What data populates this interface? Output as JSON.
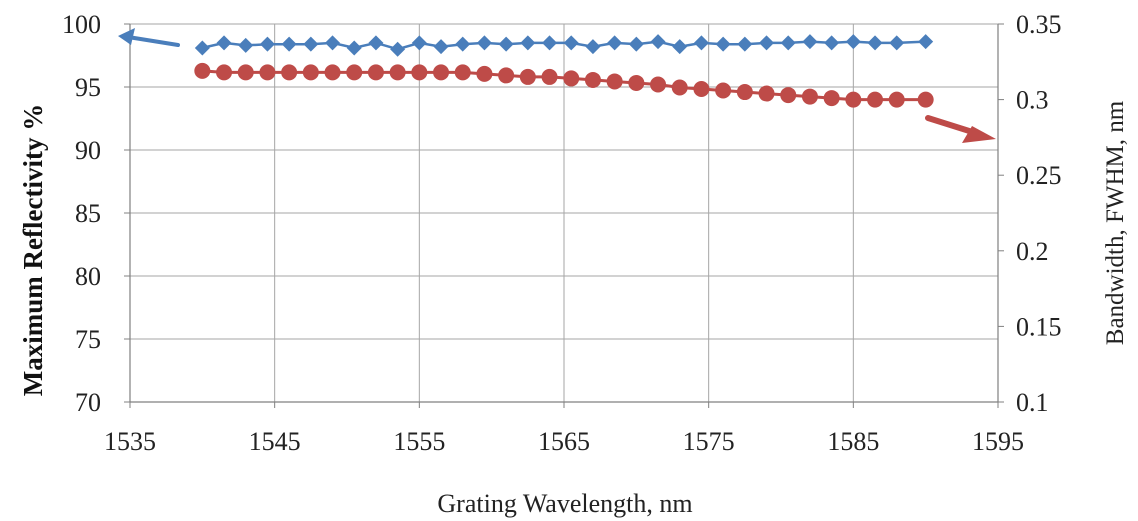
{
  "chart_data": {
    "type": "line",
    "title": "",
    "xlabel": "Grating Wavelength, nm",
    "ylabel_left": "Maximum Reflectivity %",
    "ylabel_right": "Bandwidth, FWHM, nm",
    "xlim": [
      1535,
      1595
    ],
    "ylim_left": [
      70,
      100
    ],
    "ylim_right": [
      0.1,
      0.35
    ],
    "x_ticks": [
      "1535",
      "1545",
      "1555",
      "1565",
      "1575",
      "1585",
      "1595"
    ],
    "y_left_ticks": [
      "70",
      "75",
      "80",
      "85",
      "90",
      "95",
      "100"
    ],
    "y_right_ticks": [
      "0.1",
      "0.15",
      "0.2",
      "0.25",
      "0.3",
      "0.35"
    ],
    "grid": true,
    "colors": {
      "reflectivity": "#4a7ebb",
      "bandwidth": "#be4b48",
      "grid": "#a6a6a6"
    },
    "series": [
      {
        "axis": "left",
        "marker": "diamond",
        "x": [
          1540,
          1541.5,
          1543,
          1544.5,
          1546,
          1547.5,
          1549,
          1550.5,
          1552,
          1553.5,
          1555,
          1556.5,
          1558,
          1559.5,
          1561,
          1562.5,
          1564,
          1565.5,
          1567,
          1568.5,
          1570,
          1571.5,
          1573,
          1574.5,
          1576,
          1577.5,
          1579,
          1580.5,
          1582,
          1583.5,
          1585,
          1586.5,
          1588,
          1590
        ],
        "values": [
          98.1,
          98.5,
          98.3,
          98.4,
          98.4,
          98.4,
          98.5,
          98.1,
          98.5,
          98.0,
          98.5,
          98.2,
          98.4,
          98.5,
          98.4,
          98.5,
          98.5,
          98.5,
          98.2,
          98.5,
          98.4,
          98.6,
          98.2,
          98.5,
          98.4,
          98.4,
          98.5,
          98.5,
          98.6,
          98.5,
          98.6,
          98.5,
          98.5,
          98.6
        ]
      },
      {
        "axis": "right",
        "marker": "circle",
        "x": [
          1540,
          1541.5,
          1543,
          1544.5,
          1546,
          1547.5,
          1549,
          1550.5,
          1552,
          1553.5,
          1555,
          1556.5,
          1558,
          1559.5,
          1561,
          1562.5,
          1564,
          1565.5,
          1567,
          1568.5,
          1570,
          1571.5,
          1573,
          1574.5,
          1576,
          1577.5,
          1579,
          1580.5,
          1582,
          1583.5,
          1585,
          1586.5,
          1588,
          1590
        ],
        "values": [
          0.319,
          0.318,
          0.318,
          0.318,
          0.318,
          0.318,
          0.318,
          0.318,
          0.318,
          0.318,
          0.318,
          0.318,
          0.318,
          0.317,
          0.316,
          0.315,
          0.315,
          0.314,
          0.313,
          0.312,
          0.311,
          0.31,
          0.308,
          0.307,
          0.306,
          0.305,
          0.304,
          0.303,
          0.302,
          0.301,
          0.3,
          0.3,
          0.3,
          0.3
        ]
      }
    ],
    "annotations": [
      {
        "shape": "arrow",
        "points_to": "left axis",
        "color": "#4a7ebb"
      },
      {
        "shape": "arrow",
        "points_to": "right axis",
        "color": "#be4b48"
      }
    ]
  }
}
